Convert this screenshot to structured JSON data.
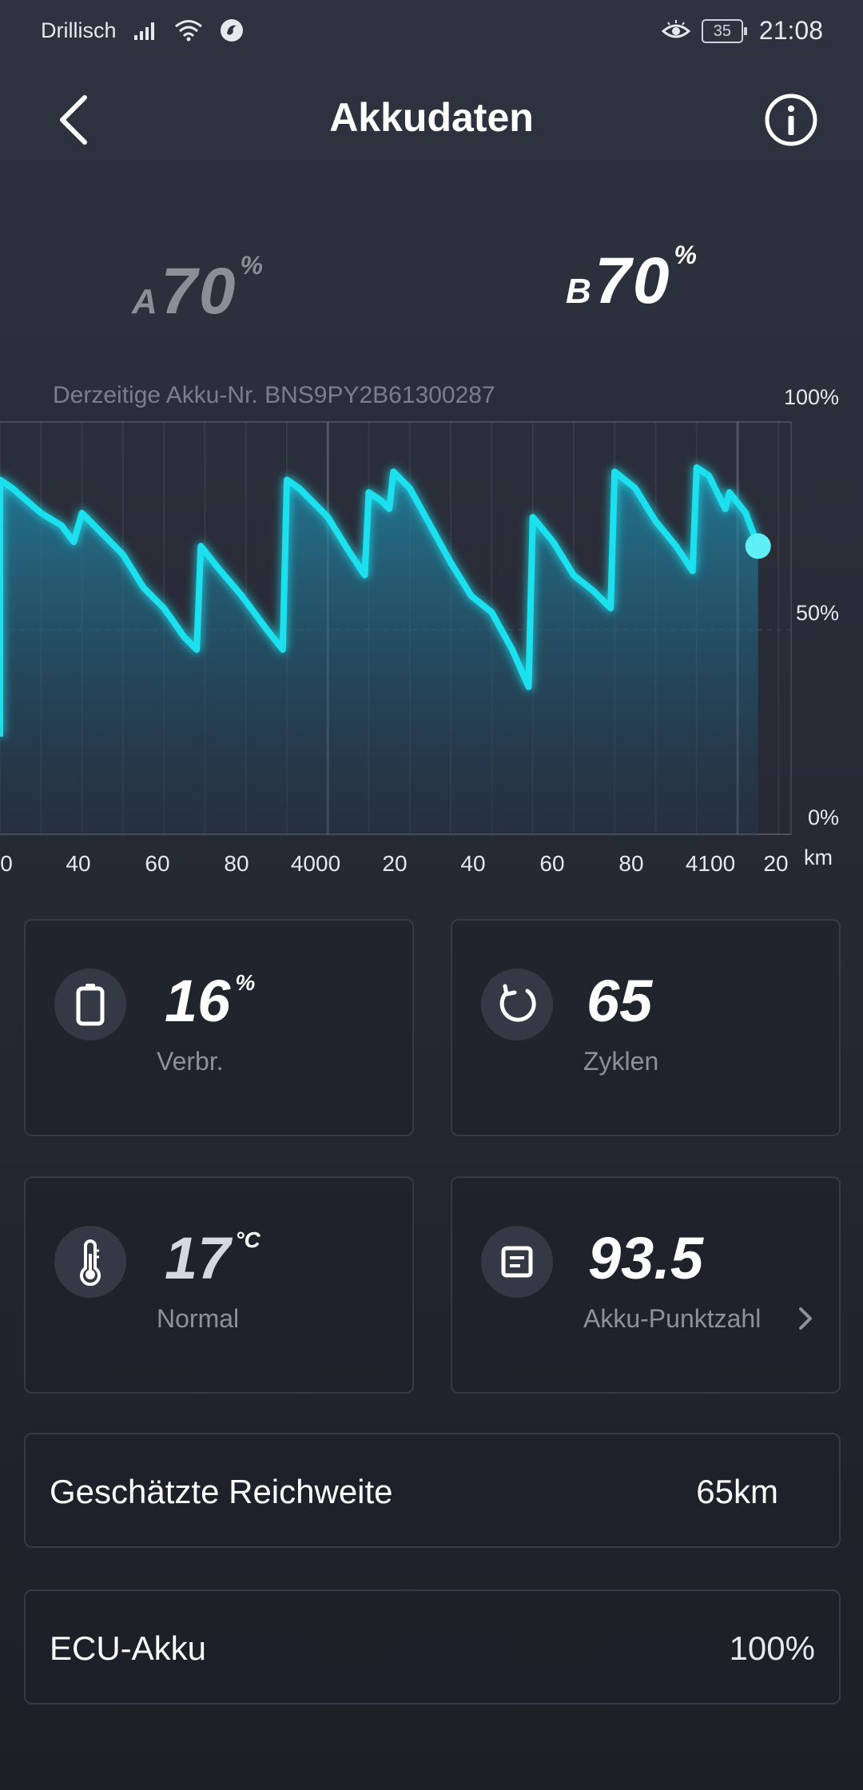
{
  "status_bar": {
    "carrier": "Drillisch",
    "battery_level": "35",
    "time": "21:08"
  },
  "header": {
    "title": "Akkudaten"
  },
  "batteries": {
    "a": {
      "letter": "A",
      "value": "70",
      "unit": "%"
    },
    "b": {
      "letter": "B",
      "value": "70",
      "unit": "%"
    }
  },
  "current_battery_label": "Derzeitige Akku-Nr. BNS9PY2B61300287",
  "chart_data": {
    "type": "area",
    "title": "",
    "xlabel": "km",
    "ylabel": "",
    "x_tick_labels": [
      "0",
      "40",
      "60",
      "80",
      "4000",
      "20",
      "40",
      "60",
      "80",
      "4100",
      "20"
    ],
    "y_tick_labels": [
      "100%",
      "50%",
      "0%"
    ],
    "ylim": [
      0,
      100
    ],
    "series": [
      {
        "values": [
          [
            3920,
            24
          ],
          [
            3920,
            86
          ],
          [
            3923,
            84
          ],
          [
            3930,
            78
          ],
          [
            3935,
            75
          ],
          [
            3938,
            71
          ],
          [
            3940,
            78
          ],
          [
            3945,
            73
          ],
          [
            3950,
            68
          ],
          [
            3955,
            60
          ],
          [
            3960,
            55
          ],
          [
            3965,
            48
          ],
          [
            3968,
            45
          ],
          [
            3969,
            70
          ],
          [
            3973,
            65
          ],
          [
            3979,
            58
          ],
          [
            3985,
            50
          ],
          [
            3989,
            45
          ],
          [
            3990,
            86
          ],
          [
            3993,
            84
          ],
          [
            4000,
            77
          ],
          [
            4005,
            69
          ],
          [
            4009,
            63
          ],
          [
            4010,
            83
          ],
          [
            4013,
            81
          ],
          [
            4015,
            79
          ],
          [
            4016,
            88
          ],
          [
            4020,
            84
          ],
          [
            4025,
            75
          ],
          [
            4030,
            66
          ],
          [
            4035,
            58
          ],
          [
            4040,
            54
          ],
          [
            4045,
            45
          ],
          [
            4049,
            36
          ],
          [
            4050,
            77
          ],
          [
            4055,
            71
          ],
          [
            4060,
            63
          ],
          [
            4065,
            59
          ],
          [
            4069,
            55
          ],
          [
            4070,
            88
          ],
          [
            4075,
            84
          ],
          [
            4080,
            76
          ],
          [
            4085,
            70
          ],
          [
            4089,
            64
          ],
          [
            4090,
            89
          ],
          [
            4093,
            87
          ],
          [
            4095,
            83
          ],
          [
            4097,
            79
          ],
          [
            4098,
            83
          ],
          [
            4102,
            78
          ],
          [
            4105,
            70
          ]
        ]
      }
    ],
    "current_point": [
      4105,
      70
    ]
  },
  "stats": {
    "consumption": {
      "value": "16",
      "unit": "%",
      "label": "Verbr."
    },
    "cycles": {
      "value": "65",
      "label": "Zyklen"
    },
    "temperature": {
      "value": "17",
      "unit": "°C",
      "label": "Normal"
    },
    "score": {
      "value": "93.5",
      "label": "Akku-Punktzahl"
    }
  },
  "rows": {
    "range": {
      "label": "Geschätzte Reichweite",
      "value": "65km"
    },
    "ecu": {
      "label": "ECU-Akku",
      "value": "100%"
    }
  },
  "colors": {
    "accent": "#1fe0ee",
    "background": "#2a2d38"
  }
}
